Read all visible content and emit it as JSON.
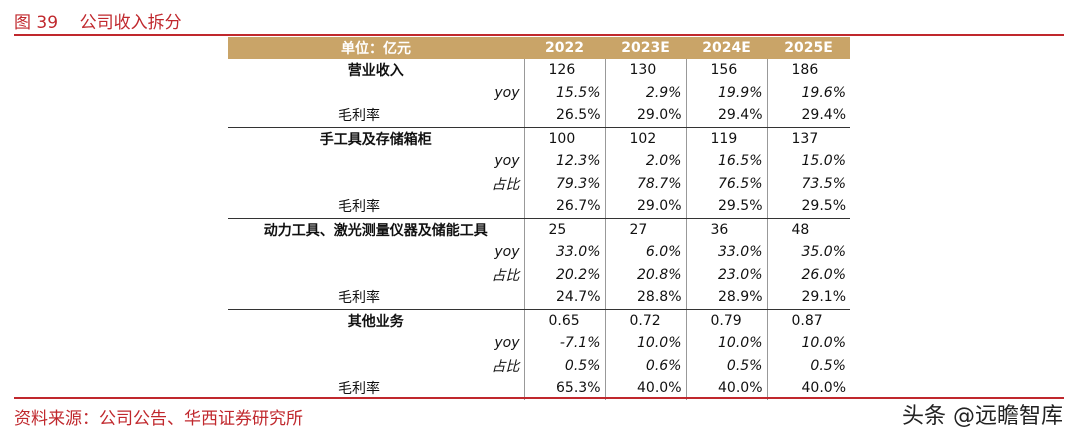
{
  "header": {
    "title": "图 39    公司收入拆分"
  },
  "table": {
    "header": [
      "单位：亿元",
      "2022",
      "2023E",
      "2024E",
      "2025E"
    ],
    "rows": [
      [
        "营业收入",
        "126",
        "130",
        "156",
        "186"
      ],
      [
        "yoy",
        "15.5%",
        "2.9%",
        "19.9%",
        "19.6%"
      ],
      [
        "毛利率",
        "26.5%",
        "29.0%",
        "29.4%",
        "29.4%"
      ],
      [
        "手工具及存储箱柜",
        "100",
        "102",
        "119",
        "137"
      ],
      [
        "yoy",
        "12.3%",
        "2.0%",
        "16.5%",
        "15.0%"
      ],
      [
        "占比",
        "79.3%",
        "78.7%",
        "76.5%",
        "73.5%"
      ],
      [
        "毛利率",
        "26.7%",
        "29.0%",
        "29.5%",
        "29.5%"
      ],
      [
        "动力工具、激光测量仪器及储能工具",
        "25",
        "27",
        "36",
        "48"
      ],
      [
        "yoy",
        "33.0%",
        "6.0%",
        "33.0%",
        "35.0%"
      ],
      [
        "占比",
        "20.2%",
        "20.8%",
        "23.0%",
        "26.0%"
      ],
      [
        "毛利率",
        "24.7%",
        "28.8%",
        "28.9%",
        "29.1%"
      ],
      [
        "其他业务",
        "0.65",
        "0.72",
        "0.79",
        "0.87"
      ],
      [
        "yoy",
        "-7.1%",
        "10.0%",
        "10.0%",
        "10.0%"
      ],
      [
        "占比",
        "0.5%",
        "0.6%",
        "0.5%",
        "0.5%"
      ],
      [
        "毛利率",
        "65.3%",
        "40.0%",
        "40.0%",
        "40.0%"
      ]
    ]
  },
  "footer": {
    "source": "资料来源：公司公告、华西证券研究所",
    "watermark": "头条 @远瞻智库"
  }
}
